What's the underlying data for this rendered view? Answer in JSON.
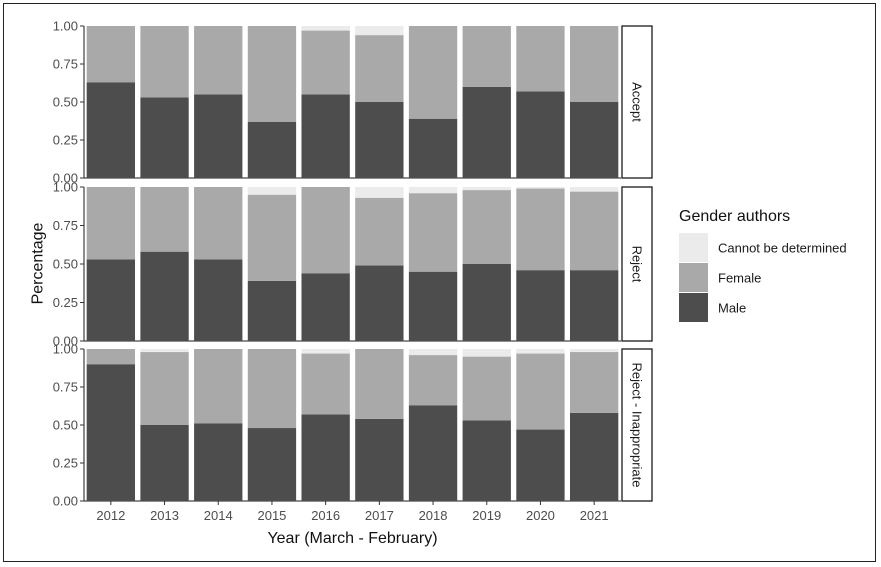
{
  "chart_data": {
    "type": "bar",
    "stacked": true,
    "xlabel": "Year (March - February)",
    "ylabel": "Percentage",
    "ylim": [
      0,
      1
    ],
    "y_ticks": [
      "0.00",
      "0.25",
      "0.50",
      "0.75",
      "1.00"
    ],
    "categories": [
      "2012",
      "2013",
      "2014",
      "2015",
      "2016",
      "2017",
      "2018",
      "2019",
      "2020",
      "2021"
    ],
    "legend": {
      "title": "Gender authors",
      "position": "right",
      "entries": [
        "Cannot be determined",
        "Female",
        "Male"
      ]
    },
    "colors": {
      "Cannot be determined": "#ebebeb",
      "Female": "#a9a9a9",
      "Male": "#4d4d4d"
    },
    "facets": [
      {
        "name": "Accept",
        "series": [
          {
            "name": "Male",
            "values": [
              0.63,
              0.53,
              0.55,
              0.37,
              0.55,
              0.5,
              0.39,
              0.6,
              0.57,
              0.5
            ]
          },
          {
            "name": "Female",
            "values": [
              0.37,
              0.47,
              0.45,
              0.63,
              0.42,
              0.44,
              0.61,
              0.4,
              0.43,
              0.5
            ]
          },
          {
            "name": "Cannot be determined",
            "values": [
              0.0,
              0.0,
              0.0,
              0.0,
              0.03,
              0.06,
              0.0,
              0.0,
              0.0,
              0.0
            ]
          }
        ]
      },
      {
        "name": "Reject",
        "series": [
          {
            "name": "Male",
            "values": [
              0.53,
              0.58,
              0.53,
              0.39,
              0.44,
              0.49,
              0.45,
              0.5,
              0.46,
              0.46
            ]
          },
          {
            "name": "Female",
            "values": [
              0.47,
              0.42,
              0.47,
              0.56,
              0.56,
              0.44,
              0.51,
              0.48,
              0.53,
              0.51
            ]
          },
          {
            "name": "Cannot be determined",
            "values": [
              0.0,
              0.0,
              0.0,
              0.05,
              0.0,
              0.07,
              0.04,
              0.02,
              0.01,
              0.03
            ]
          }
        ]
      },
      {
        "name": "Reject - Inappropriate",
        "series": [
          {
            "name": "Male",
            "values": [
              0.9,
              0.5,
              0.51,
              0.48,
              0.57,
              0.54,
              0.63,
              0.53,
              0.47,
              0.58
            ]
          },
          {
            "name": "Female",
            "values": [
              0.1,
              0.48,
              0.49,
              0.52,
              0.4,
              0.46,
              0.33,
              0.42,
              0.5,
              0.4
            ]
          },
          {
            "name": "Cannot be determined",
            "values": [
              0.0,
              0.02,
              0.0,
              0.0,
              0.03,
              0.0,
              0.04,
              0.05,
              0.03,
              0.02
            ]
          }
        ]
      }
    ]
  }
}
